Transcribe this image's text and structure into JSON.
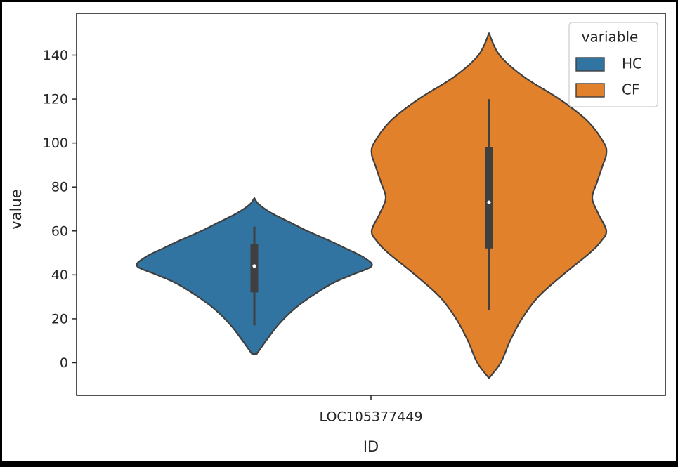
{
  "chart_data": {
    "type": "violin",
    "title": "",
    "xlabel": "ID",
    "ylabel": "value",
    "categories": [
      "LOC105377449"
    ],
    "ylim": [
      -15,
      155
    ],
    "yticks": [
      0,
      20,
      40,
      60,
      80,
      100,
      120,
      140
    ],
    "grid": false,
    "legend": {
      "title": "variable",
      "position": "top-right",
      "entries": [
        "HC",
        "CF"
      ]
    },
    "series": [
      {
        "name": "HC",
        "color": "#3274a1",
        "stats": {
          "min": 17,
          "q1": 32,
          "median": 44,
          "q3": 54,
          "max": 62
        },
        "density": {
          "y": [
            4,
            10,
            17,
            24,
            30,
            36,
            40,
            44,
            48,
            52,
            56,
            60,
            64,
            68,
            72,
            75
          ],
          "w": [
            0.02,
            0.1,
            0.2,
            0.33,
            0.48,
            0.66,
            0.83,
            1.0,
            0.93,
            0.78,
            0.62,
            0.45,
            0.3,
            0.15,
            0.04,
            0.0
          ]
        }
      },
      {
        "name": "CF",
        "color": "#e1812c",
        "stats": {
          "min": 24,
          "q1": 52,
          "median": 73,
          "q3": 98,
          "max": 120
        },
        "density": {
          "y": [
            -7,
            0,
            10,
            20,
            30,
            40,
            50,
            55,
            60,
            68,
            75,
            82,
            90,
            95,
            100,
            110,
            120,
            130,
            140,
            150
          ],
          "w": [
            0.0,
            0.1,
            0.18,
            0.28,
            0.42,
            0.63,
            0.86,
            0.95,
            1.0,
            0.93,
            0.88,
            0.92,
            0.97,
            1.0,
            0.98,
            0.84,
            0.6,
            0.3,
            0.09,
            0.0
          ]
        }
      }
    ]
  }
}
